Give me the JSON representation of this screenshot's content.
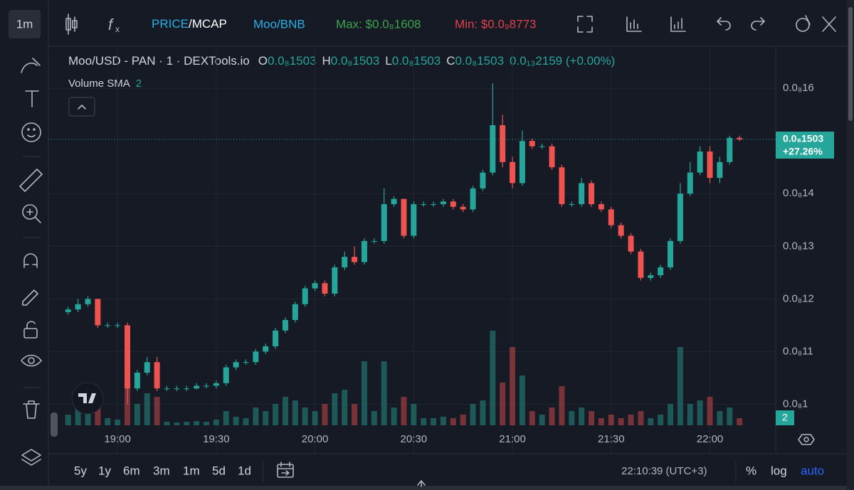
{
  "toolbar": {
    "interval": "1m",
    "price": "PRICE",
    "mcap": "/MCAP",
    "pair": "Moo/BNB",
    "max": "Max: $0.0₈1608",
    "min": "Min: $0.0₉8773"
  },
  "legend": {
    "title": "Moo/USD - PAN · 1 · DEXTools.io",
    "ohlc": [
      {
        "key": "O",
        "value": "0.0₈1503"
      },
      {
        "key": "H",
        "value": "0.0₈1503"
      },
      {
        "key": "L",
        "value": "0.0₈1503"
      },
      {
        "key": "C",
        "value": "0.0₈1503"
      }
    ],
    "change": "0.0₁₃2159 (+0.00%)",
    "indicator": "Volume SMA",
    "indicator_param": "2"
  },
  "chart_data": {
    "type": "candlestick",
    "x": [
      "18:45",
      "18:48",
      "18:51",
      "18:54",
      "18:57",
      "19:00",
      "19:03",
      "19:06",
      "19:09",
      "19:12",
      "19:15",
      "19:18",
      "19:21",
      "19:24",
      "19:27",
      "19:30",
      "19:33",
      "19:36",
      "19:39",
      "19:42",
      "19:45",
      "19:48",
      "19:51",
      "19:54",
      "19:57",
      "20:00",
      "20:03",
      "20:06",
      "20:09",
      "20:12",
      "20:15",
      "20:18",
      "20:21",
      "20:24",
      "20:27",
      "20:30",
      "20:33",
      "20:36",
      "20:39",
      "20:42",
      "20:45",
      "20:48",
      "20:51",
      "20:54",
      "20:57",
      "21:00",
      "21:03",
      "21:06",
      "21:09",
      "21:12",
      "21:15",
      "21:18",
      "21:21",
      "21:24",
      "21:27",
      "21:30",
      "21:33",
      "21:36",
      "21:39",
      "21:42",
      "21:45",
      "21:48",
      "21:51",
      "21:54",
      "21:57",
      "22:00",
      "22:03",
      "22:06",
      "22:09"
    ],
    "open": [
      1.175e-10,
      1.18e-10,
      1.19e-10,
      1.2e-10,
      1.15e-10,
      1.15e-10,
      1.15e-10,
      1.03e-10,
      1.06e-10,
      1.08e-10,
      1.03e-10,
      1.03e-10,
      1.03e-10,
      1.03e-10,
      1.035e-10,
      1.035e-10,
      1.04e-10,
      1.07e-10,
      1.08e-10,
      1.08e-10,
      1.1e-10,
      1.11e-10,
      1.14e-10,
      1.16e-10,
      1.19e-10,
      1.22e-10,
      1.23e-10,
      1.21e-10,
      1.26e-10,
      1.28e-10,
      1.27e-10,
      1.31e-10,
      1.31e-10,
      1.38e-10,
      1.39e-10,
      1.32e-10,
      1.38e-10,
      1.38e-10,
      1.38e-10,
      1.385e-10,
      1.375e-10,
      1.37e-10,
      1.41e-10,
      1.44e-10,
      1.53e-10,
      1.46e-10,
      1.42e-10,
      1.5e-10,
      1.49e-10,
      1.49e-10,
      1.45e-10,
      1.38e-10,
      1.38e-10,
      1.42e-10,
      1.38e-10,
      1.37e-10,
      1.34e-10,
      1.32e-10,
      1.29e-10,
      1.24e-10,
      1.245e-10,
      1.26e-10,
      1.31e-10,
      1.4e-10,
      1.44e-10,
      1.48e-10,
      1.43e-10,
      1.46e-10,
      1.506e-10
    ],
    "high": [
      1.185e-10,
      1.2e-10,
      1.205e-10,
      1.2e-10,
      1.155e-10,
      1.155e-10,
      1.155e-10,
      1.065e-10,
      1.09e-10,
      1.09e-10,
      1.035e-10,
      1.035e-10,
      1.035e-10,
      1.04e-10,
      1.04e-10,
      1.045e-10,
      1.075e-10,
      1.085e-10,
      1.085e-10,
      1.105e-10,
      1.115e-10,
      1.145e-10,
      1.165e-10,
      1.195e-10,
      1.225e-10,
      1.235e-10,
      1.235e-10,
      1.265e-10,
      1.29e-10,
      1.3e-10,
      1.315e-10,
      1.315e-10,
      1.41e-10,
      1.395e-10,
      1.39e-10,
      1.385e-10,
      1.385e-10,
      1.385e-10,
      1.39e-10,
      1.39e-10,
      1.38e-10,
      1.415e-10,
      1.445e-10,
      1.61e-10,
      1.55e-10,
      1.47e-10,
      1.52e-10,
      1.505e-10,
      1.495e-10,
      1.495e-10,
      1.455e-10,
      1.385e-10,
      1.43e-10,
      1.425e-10,
      1.385e-10,
      1.375e-10,
      1.345e-10,
      1.325e-10,
      1.295e-10,
      1.25e-10,
      1.265e-10,
      1.315e-10,
      1.42e-10,
      1.46e-10,
      1.49e-10,
      1.49e-10,
      1.47e-10,
      1.51e-10,
      1.51e-10
    ],
    "low": [
      1.17e-10,
      1.175e-10,
      1.185e-10,
      1.145e-10,
      1.145e-10,
      1.145e-10,
      1e-10,
      1.025e-10,
      1.055e-10,
      1.025e-10,
      1.025e-10,
      1.025e-10,
      1.025e-10,
      1.028e-10,
      1.03e-10,
      1.03e-10,
      1.035e-10,
      1.065e-10,
      1.075e-10,
      1.075e-10,
      1.095e-10,
      1.105e-10,
      1.135e-10,
      1.155e-10,
      1.185e-10,
      1.215e-10,
      1.205e-10,
      1.205e-10,
      1.255e-10,
      1.265e-10,
      1.265e-10,
      1.305e-10,
      1.305e-10,
      1.375e-10,
      1.315e-10,
      1.315e-10,
      1.375e-10,
      1.375e-10,
      1.375e-10,
      1.37e-10,
      1.365e-10,
      1.365e-10,
      1.405e-10,
      1.435e-10,
      1.45e-10,
      1.41e-10,
      1.415e-10,
      1.485e-10,
      1.485e-10,
      1.445e-10,
      1.375e-10,
      1.375e-10,
      1.375e-10,
      1.375e-10,
      1.365e-10,
      1.335e-10,
      1.315e-10,
      1.285e-10,
      1.235e-10,
      1.235e-10,
      1.24e-10,
      1.255e-10,
      1.305e-10,
      1.395e-10,
      1.435e-10,
      1.42e-10,
      1.42e-10,
      1.455e-10,
      1.5e-10
    ],
    "close": [
      1.18e-10,
      1.19e-10,
      1.2e-10,
      1.15e-10,
      1.15e-10,
      1.15e-10,
      1.03e-10,
      1.06e-10,
      1.08e-10,
      1.03e-10,
      1.03e-10,
      1.03e-10,
      1.03e-10,
      1.035e-10,
      1.035e-10,
      1.04e-10,
      1.07e-10,
      1.08e-10,
      1.08e-10,
      1.1e-10,
      1.11e-10,
      1.14e-10,
      1.16e-10,
      1.19e-10,
      1.22e-10,
      1.23e-10,
      1.21e-10,
      1.26e-10,
      1.28e-10,
      1.27e-10,
      1.31e-10,
      1.31e-10,
      1.38e-10,
      1.39e-10,
      1.32e-10,
      1.38e-10,
      1.38e-10,
      1.38e-10,
      1.385e-10,
      1.375e-10,
      1.37e-10,
      1.41e-10,
      1.44e-10,
      1.53e-10,
      1.46e-10,
      1.42e-10,
      1.5e-10,
      1.49e-10,
      1.49e-10,
      1.45e-10,
      1.38e-10,
      1.38e-10,
      1.42e-10,
      1.38e-10,
      1.37e-10,
      1.34e-10,
      1.32e-10,
      1.29e-10,
      1.24e-10,
      1.245e-10,
      1.26e-10,
      1.31e-10,
      1.4e-10,
      1.44e-10,
      1.48e-10,
      1.43e-10,
      1.46e-10,
      1.506e-10,
      1.503e-10
    ],
    "volume": [
      15,
      25,
      20,
      30,
      10,
      8,
      100,
      30,
      45,
      40,
      5,
      4,
      5,
      6,
      5,
      8,
      20,
      12,
      10,
      25,
      20,
      30,
      40,
      35,
      25,
      20,
      30,
      45,
      50,
      30,
      90,
      20,
      90,
      25,
      40,
      30,
      10,
      10,
      12,
      10,
      15,
      30,
      35,
      133,
      60,
      110,
      70,
      20,
      15,
      25,
      55,
      20,
      25,
      20,
      10,
      15,
      10,
      15,
      20,
      10,
      15,
      30,
      110,
      30,
      35,
      40,
      20,
      25,
      10
    ],
    "vlim": [
      0,
      133
    ],
    "xlim": [
      "18:39",
      "22:20"
    ],
    "xticks": [
      "19:00",
      "19:30",
      "20:00",
      "20:30",
      "21:00",
      "21:30",
      "22:00"
    ],
    "ylim": [
      9.6e-11,
      1.68e-10
    ],
    "yticks": [
      {
        "value": 1e-10,
        "label": "0.0₈1"
      },
      {
        "value": 1.1e-10,
        "label": "0.0₈11"
      },
      {
        "value": 1.2e-10,
        "label": "0.0₈12"
      },
      {
        "value": 1.3e-10,
        "label": "0.0₈13"
      },
      {
        "value": 1.4e-10,
        "label": "0.0₈14"
      },
      {
        "value": 1.6e-10,
        "label": "0.0₈16"
      }
    ],
    "grid": true,
    "up_color": "#26a69a",
    "down_color": "#ef5350",
    "last_price": {
      "value": 1.503e-10,
      "label": "0.0₈1503",
      "change": "+27.26%"
    },
    "volume_label": "2"
  },
  "bottom_bar": {
    "ranges": [
      "5y",
      "1y",
      "6m",
      "3m",
      "1m",
      "5d",
      "1d"
    ],
    "clock": "22:10:39 (UTC+3)",
    "percent": "%",
    "log": "log",
    "auto": "auto"
  }
}
